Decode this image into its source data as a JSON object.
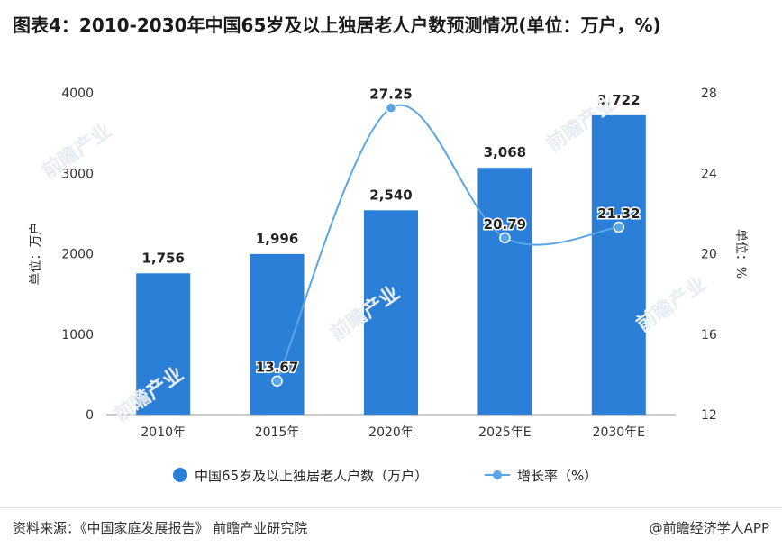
{
  "title": "图表4：2010-2030年中国65岁及以上独居老人户数预测情况(单位：万户，%)",
  "footer": {
    "source": "资料来源：《中国家庭发展报告》 前瞻产业研究院",
    "brand": "@前瞻经济学人APP"
  },
  "watermark": "前瞻产业",
  "colors": {
    "bar": "#2b7fd6",
    "line": "#5aa5e6",
    "grid": "#e6e6e6",
    "axis": "#999999",
    "text": "#333333"
  },
  "chart_data": {
    "type": "bar",
    "categories": [
      "2010年",
      "2015年",
      "2020年",
      "2025年E",
      "2030年E"
    ],
    "series": [
      {
        "name": "中国65岁及以上独居老人户数（万户）",
        "type": "bar",
        "axis": "left",
        "values": [
          1756,
          1996,
          2540,
          3068,
          3722
        ],
        "labels": [
          "1,756",
          "1,996",
          "2,540",
          "3,068",
          "3,722"
        ]
      },
      {
        "name": "增长率（%）",
        "type": "line",
        "axis": "right",
        "values": [
          null,
          13.67,
          27.25,
          20.79,
          21.32
        ],
        "labels": [
          "",
          "13.67",
          "27.25",
          "20.79",
          "21.32"
        ]
      }
    ],
    "ylabel": "单位：万户",
    "y2label": "单位：%",
    "ylim": [
      0,
      4000
    ],
    "y2lim": [
      12,
      28
    ],
    "yticks": [
      "0",
      "1000",
      "2000",
      "3000",
      "4000"
    ],
    "y2ticks": [
      "12",
      "16",
      "20",
      "24",
      "28"
    ],
    "legend_position": "bottom",
    "grid": false
  }
}
